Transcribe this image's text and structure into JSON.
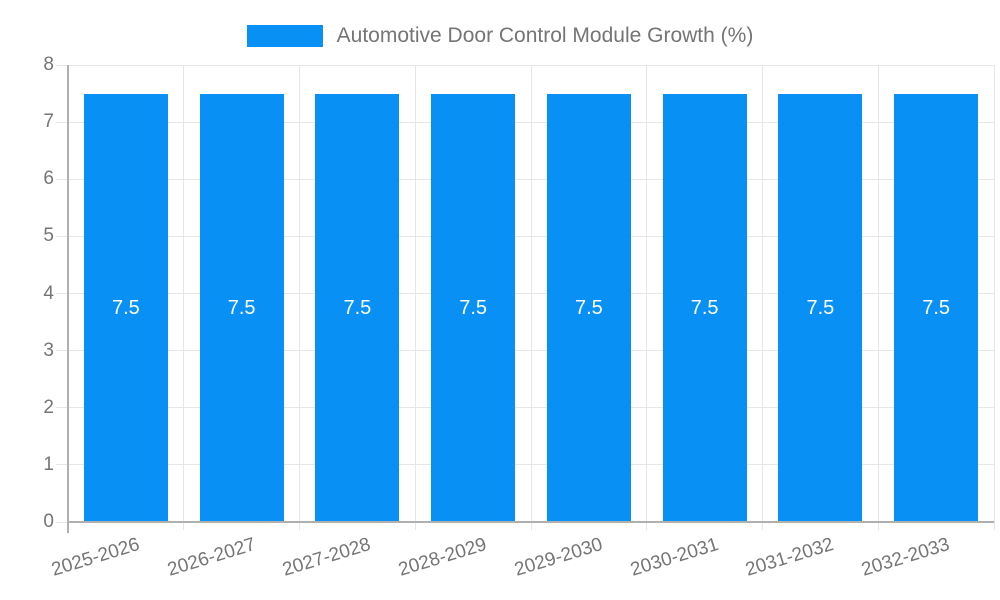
{
  "legend": {
    "label": "Automotive Door Control Module Growth (%)"
  },
  "colors": {
    "bar": "#0990f5",
    "bar_label_text": "#ffffff",
    "axis_text": "#757575",
    "gridline": "#e6e6e6",
    "axis_line": "#b0b0b0",
    "background": "#ffffff"
  },
  "chart_data": {
    "type": "bar",
    "title": "Automotive Door Control Module Growth (%)",
    "categories": [
      "2025-2026",
      "2026-2027",
      "2027-2028",
      "2028-2029",
      "2029-2030",
      "2030-2031",
      "2031-2032",
      "2032-2033"
    ],
    "series": [
      {
        "name": "Automotive Door Control Module Growth (%)",
        "values": [
          7.5,
          7.5,
          7.5,
          7.5,
          7.5,
          7.5,
          7.5,
          7.5
        ]
      }
    ],
    "bar_labels": [
      "7.5",
      "7.5",
      "7.5",
      "7.5",
      "7.5",
      "7.5",
      "7.5",
      "7.5"
    ],
    "xlabel": "",
    "ylabel": "",
    "ylim": [
      0,
      8
    ],
    "yticks": [
      0,
      1,
      2,
      3,
      4,
      5,
      6,
      7,
      8
    ],
    "grid": true,
    "legend_position": "top",
    "x_tick_angle_deg": -17
  }
}
